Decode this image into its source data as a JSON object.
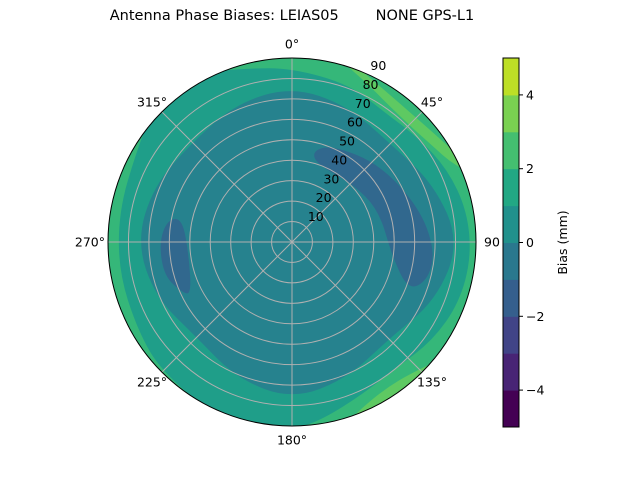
{
  "chart_data": {
    "type": "contour",
    "projection": "polar",
    "title": "Antenna Phase Biases: LEIAS05        NONE GPS-L1",
    "theta_direction": "clockwise",
    "theta_zero": "north",
    "theta_ticks": [
      "0°",
      "45°",
      "90",
      "135°",
      "180°",
      "225°",
      "270°",
      "315°"
    ],
    "theta_tick_values": [
      0,
      45,
      90,
      135,
      180,
      225,
      270,
      315
    ],
    "r_ticks": [
      "10",
      "20",
      "30",
      "40",
      "50",
      "60",
      "70",
      "80",
      "90"
    ],
    "r_tick_values": [
      10,
      20,
      30,
      40,
      50,
      60,
      70,
      80,
      90
    ],
    "rlim": [
      0,
      90
    ],
    "grid": true,
    "levels": [
      -5,
      -4,
      -3,
      -2,
      -1,
      0,
      1,
      2,
      3,
      4,
      5
    ],
    "level_colors": [
      "#440154",
      "#482475",
      "#414487",
      "#355f8d",
      "#2a788e",
      "#21918c",
      "#22a884",
      "#44bf70",
      "#7ad151",
      "#bddf26"
    ],
    "regions_note_units": "azimuth deg, zenith deg",
    "regions": [
      {
        "level": [
          1,
          2
        ],
        "color": "#35b779",
        "polygon": "full"
      },
      {
        "level": [
          2,
          3
        ],
        "color": "#5ec962",
        "polygon": [
          [
            10,
            100
          ],
          [
            15,
            92
          ],
          [
            25,
            86
          ],
          [
            35,
            82
          ],
          [
            45,
            81
          ],
          [
            55,
            83
          ],
          [
            65,
            88
          ],
          [
            72,
            100
          ]
        ]
      },
      {
        "level": [
          2,
          3
        ],
        "color": "#5ec962",
        "polygon": [
          [
            122,
            100
          ],
          [
            128,
            93
          ],
          [
            135,
            88
          ],
          [
            145,
            85
          ],
          [
            155,
            87
          ],
          [
            165,
            94
          ],
          [
            170,
            100
          ]
        ]
      },
      {
        "level": [
          0,
          1
        ],
        "color": "#1f9e89",
        "polygon": [
          [
            0,
            85
          ],
          [
            20,
            82
          ],
          [
            35,
            78
          ],
          [
            50,
            80
          ],
          [
            65,
            84
          ],
          [
            80,
            87
          ],
          [
            95,
            88
          ],
          [
            110,
            87
          ],
          [
            125,
            84
          ],
          [
            140,
            80
          ],
          [
            155,
            82
          ],
          [
            170,
            88
          ],
          [
            180,
            92
          ],
          [
            200,
            95
          ],
          [
            225,
            90
          ],
          [
            240,
            87
          ],
          [
            260,
            86
          ],
          [
            280,
            86
          ],
          [
            300,
            88
          ],
          [
            315,
            95
          ],
          [
            330,
            95
          ],
          [
            345,
            88
          ]
        ]
      },
      {
        "level": [
          -1,
          0
        ],
        "color": "#26828e",
        "polygon": [
          [
            0,
            76
          ],
          [
            22,
            72
          ],
          [
            45,
            68
          ],
          [
            68,
            75
          ],
          [
            90,
            82
          ],
          [
            112,
            76
          ],
          [
            135,
            67
          ],
          [
            158,
            72
          ],
          [
            180,
            77
          ],
          [
            202,
            72
          ],
          [
            225,
            66
          ],
          [
            248,
            72
          ],
          [
            270,
            76
          ],
          [
            292,
            73
          ],
          [
            315,
            69
          ],
          [
            338,
            73
          ]
        ]
      },
      {
        "level": [
          -2,
          -1
        ],
        "color": "#31688e",
        "polygon": [
          [
            12.8,
            45.9
          ],
          [
            22.9,
            51.2
          ],
          [
            48,
            57.2
          ],
          [
            74.4,
            64.3
          ],
          [
            93,
            70
          ],
          [
            105.3,
            69.2
          ],
          [
            112.7,
            61.8
          ],
          [
            98,
            49.4
          ],
          [
            69.8,
            45.3
          ],
          [
            46,
            41.1
          ],
          [
            17.1,
            40.1
          ]
        ]
      },
      {
        "level": [
          -2,
          -1
        ],
        "color": "#31688e",
        "polygon": [
          [
            280.1,
            61.9
          ],
          [
            282.2,
            54.9
          ],
          [
            262.2,
            50.9
          ],
          [
            242.6,
            55.5
          ],
          [
            245.3,
            59.1
          ],
          [
            255.1,
            64.7
          ],
          [
            269.6,
            65
          ]
        ]
      }
    ],
    "colorbar": {
      "label": "Bias (mm)",
      "ticks": [
        "4",
        "2",
        "0",
        "−2",
        "−4"
      ],
      "tick_values": [
        4,
        2,
        0,
        -2,
        -4
      ],
      "range": [
        -5,
        5
      ]
    }
  }
}
